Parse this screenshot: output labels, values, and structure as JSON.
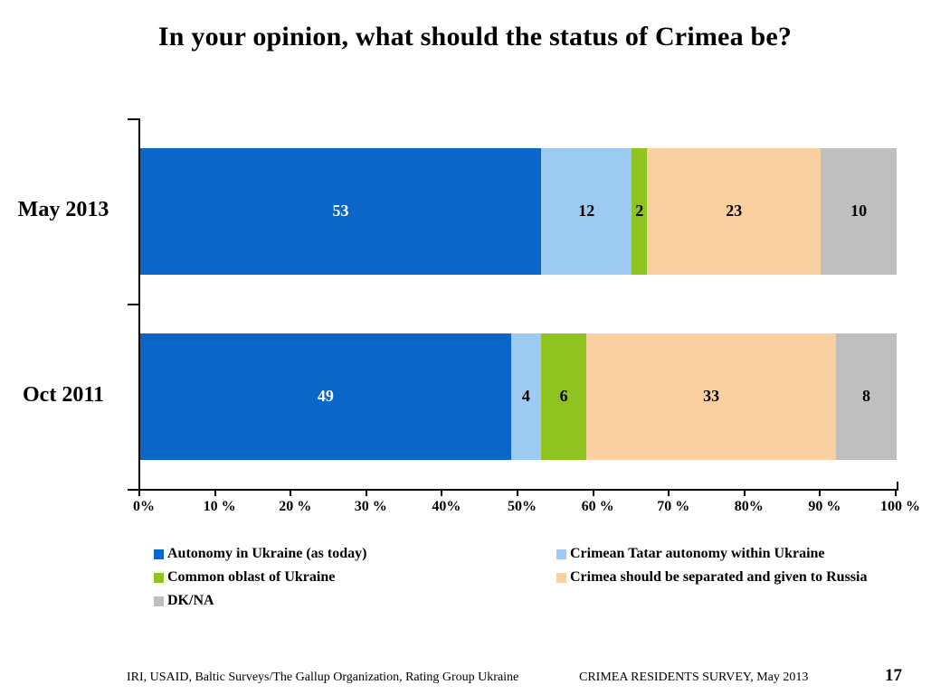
{
  "slide": {
    "title": "In your opinion, what should the status of Crimea be?",
    "footer": {
      "left": "IRI, USAID,  Baltic Surveys/The Gallup Organization, Rating Group Ukraine",
      "center": "CRIMEA RESIDENTS SURVEY, May 2013",
      "page_number": "17"
    }
  },
  "chart_data": {
    "type": "bar",
    "orientation": "horizontal",
    "stacked": true,
    "title": "In your opinion, what should the status of Crimea be?",
    "categories": [
      "May 2013",
      "Oct 2011"
    ],
    "series": [
      {
        "name": "Autonomy in Ukraine (as today)",
        "values": [
          53,
          49
        ],
        "color": "#0A66C8",
        "label_color": "#FFFFFF"
      },
      {
        "name": "Crimean Tatar autonomy within Ukraine",
        "values": [
          12,
          4
        ],
        "color": "#9DCAF3",
        "label_color": "#000000"
      },
      {
        "name": "Common oblast of Ukraine",
        "values": [
          2,
          6
        ],
        "color": "#8FC31F",
        "label_color": "#000000"
      },
      {
        "name": "Crimea should be separated and given to Russia",
        "values": [
          23,
          33
        ],
        "color": "#FAD0A0",
        "label_color": "#000000"
      },
      {
        "name": "DK/NA",
        "values": [
          10,
          8
        ],
        "color": "#BFBFBF",
        "label_color": "#000000"
      }
    ],
    "xlim": [
      0,
      100
    ],
    "x_tick_step": 10,
    "x_tick_labels": [
      "0%",
      "10 %",
      "20 %",
      "30 %",
      "40%",
      "50%",
      "60 %",
      "70 %",
      "80%",
      "90 %",
      "100 %"
    ],
    "grid": false,
    "value_labels": true,
    "legend_position": "bottom",
    "legend_columns": [
      [
        0,
        2,
        4
      ],
      [
        1,
        3
      ]
    ]
  }
}
